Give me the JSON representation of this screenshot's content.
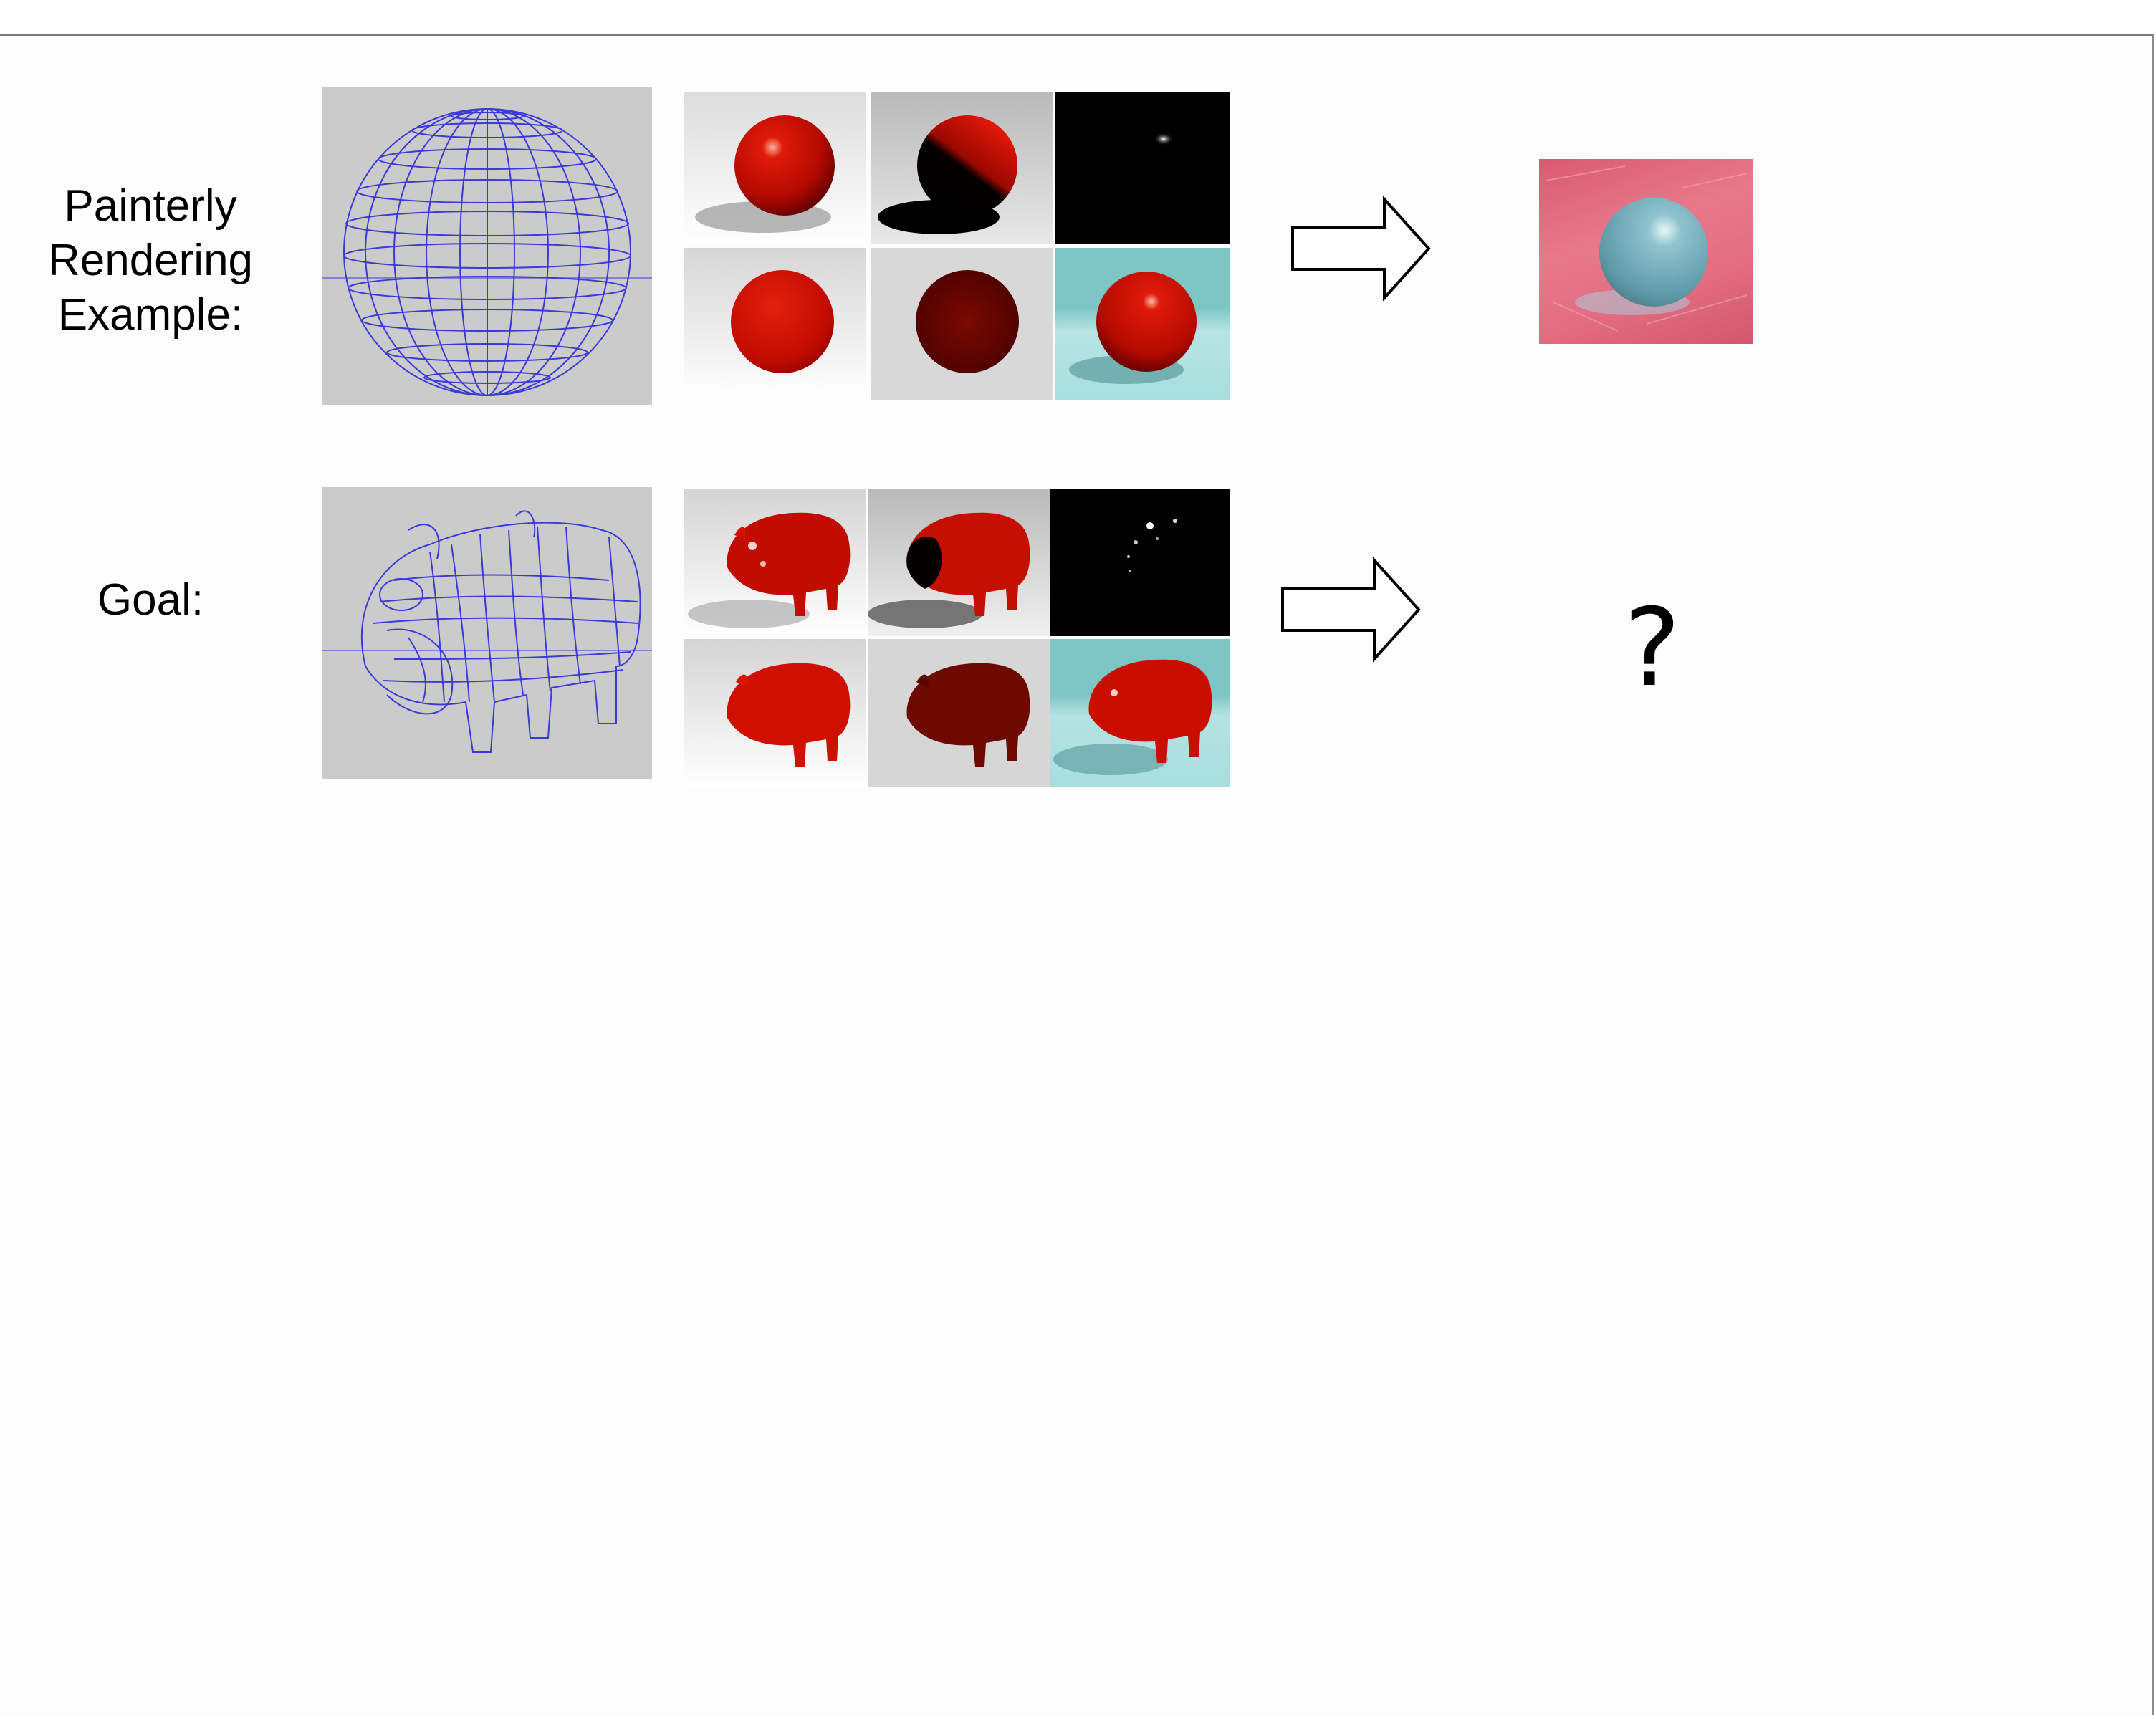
{
  "row1": {
    "label": "Painterly\nRendering\nExample:"
  },
  "row2": {
    "label": "Goal:",
    "result": "?"
  },
  "colors": {
    "wire_bg": "#cbcbcb",
    "wire": "#3a3ad8",
    "red": "#cc0d00",
    "floor_cyan": "#8fd2d2",
    "paint_pink": "#e06a7d",
    "paint_sphere": "#7fb6c4"
  },
  "icons": [
    "wireframe-sphere",
    "wireframe-rhino",
    "right-arrow-outline"
  ]
}
